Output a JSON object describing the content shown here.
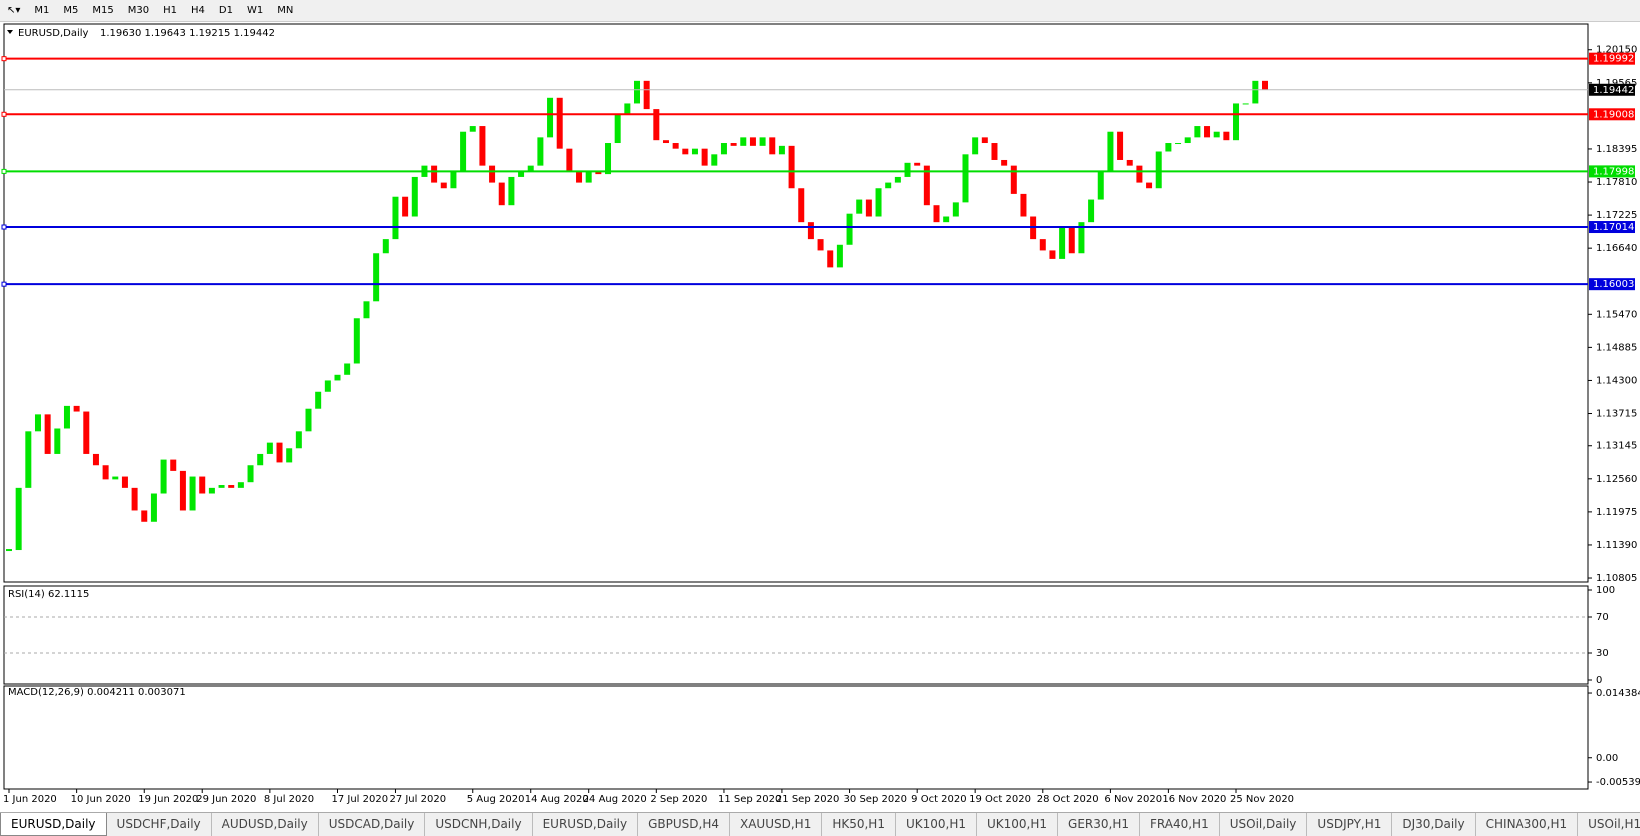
{
  "toolbar": {
    "timeframes": [
      "M1",
      "M5",
      "M15",
      "M30",
      "H1",
      "H4",
      "D1",
      "W1",
      "MN"
    ]
  },
  "chart_data": [
    {
      "type": "candlestick",
      "title": "EURUSD,Daily",
      "subtitle": "1.19630 1.19643 1.19215 1.19442",
      "categories": [
        "1 Jun 2020",
        null,
        null,
        null,
        null,
        null,
        null,
        "10 Jun 2020",
        null,
        null,
        null,
        null,
        null,
        null,
        "19 Jun 2020",
        null,
        null,
        null,
        null,
        null,
        "29 Jun 2020",
        null,
        null,
        null,
        null,
        null,
        null,
        "8 Jul 2020",
        null,
        null,
        null,
        null,
        null,
        null,
        "17 Jul 2020",
        null,
        null,
        null,
        null,
        null,
        "27 Jul 2020",
        null,
        null,
        null,
        null,
        null,
        null,
        null,
        "5 Aug 2020",
        null,
        null,
        null,
        null,
        null,
        "14 Aug 2020",
        null,
        null,
        null,
        null,
        null,
        "24 Aug 2020",
        null,
        null,
        null,
        null,
        null,
        null,
        "2 Sep 2020",
        null,
        null,
        null,
        null,
        null,
        null,
        "11 Sep 2020",
        null,
        null,
        null,
        null,
        null,
        "21 Sep 2020",
        null,
        null,
        null,
        null,
        null,
        null,
        "30 Sep 2020",
        null,
        null,
        null,
        null,
        null,
        null,
        "9 Oct 2020",
        null,
        null,
        null,
        null,
        null,
        "19 Oct 2020",
        null,
        null,
        null,
        null,
        null,
        null,
        "28 Oct 2020",
        null,
        null,
        null,
        null,
        null,
        null,
        "6 Nov 2020",
        null,
        null,
        null,
        null,
        null,
        "16 Nov 2020",
        null,
        null,
        null,
        null,
        null,
        null,
        "25 Nov 2020",
        null,
        null,
        null
      ],
      "closes": [
        1.113,
        1.124,
        1.134,
        1.137,
        1.13,
        1.1345,
        1.1385,
        1.1375,
        1.13,
        1.128,
        1.1255,
        1.126,
        1.124,
        1.12,
        1.118,
        1.123,
        1.129,
        1.127,
        1.12,
        1.126,
        1.123,
        1.124,
        1.1245,
        1.124,
        1.125,
        1.128,
        1.13,
        1.132,
        1.1285,
        1.131,
        1.134,
        1.138,
        1.141,
        1.143,
        1.144,
        1.146,
        1.154,
        1.157,
        1.1655,
        1.168,
        1.1755,
        1.172,
        1.179,
        1.181,
        1.178,
        1.177,
        1.18,
        1.187,
        1.188,
        1.181,
        1.178,
        1.174,
        1.179,
        1.18,
        1.181,
        1.186,
        1.193,
        1.184,
        1.18,
        1.178,
        1.18,
        1.1795,
        1.185,
        1.19,
        1.192,
        1.196,
        1.191,
        1.1855,
        1.185,
        1.184,
        1.183,
        1.184,
        1.181,
        1.183,
        1.185,
        1.1845,
        1.186,
        1.1845,
        1.186,
        1.183,
        1.1845,
        1.177,
        1.171,
        1.168,
        1.166,
        1.163,
        1.167,
        1.1725,
        1.175,
        1.172,
        1.177,
        1.178,
        1.179,
        1.1815,
        1.181,
        1.174,
        1.171,
        1.172,
        1.1745,
        1.183,
        1.186,
        1.185,
        1.182,
        1.181,
        1.176,
        1.172,
        1.168,
        1.166,
        1.1645,
        1.17,
        1.1655,
        1.171,
        1.175,
        1.18,
        1.187,
        1.182,
        1.181,
        1.178,
        1.177,
        1.1835,
        1.185,
        1.185,
        1.186,
        1.188,
        1.186,
        1.187,
        1.1855,
        1.192,
        1.192,
        1.196,
        1.19442
      ],
      "ylim": [
        1.1077,
        1.2057
      ],
      "yticks": [
        {
          "value": 1.2015,
          "label": "1.20150"
        },
        1.19565,
        1.18395,
        {
          "value": 1.1781,
          "label": "1.17810"
        },
        1.17225,
        {
          "value": 1.1664,
          "label": "1.16640"
        },
        {
          "value": 1.1547,
          "label": "1.15470"
        },
        1.14885,
        {
          "value": 1.143,
          "label": "1.14300"
        },
        1.13715,
        1.13145,
        {
          "value": 1.1256,
          "label": "1.12560"
        },
        1.11975,
        {
          "value": 1.1139,
          "label": "1.11390"
        },
        1.10805
      ],
      "levels": [
        {
          "value": 1.19992,
          "color": "#ff0000"
        },
        {
          "value": 1.19008,
          "color": "#ff0000"
        },
        {
          "value": 1.17998,
          "color": "#00dd00"
        },
        {
          "value": 1.17014,
          "color": "#0000dd"
        },
        {
          "value": 1.16003,
          "color": "#0000dd"
        }
      ],
      "current_price": 1.19442,
      "up_color": "#00e600",
      "down_color": "#ff0000"
    },
    {
      "type": "line",
      "title": "RSI(14) 62.1115",
      "ylim": [
        0,
        100
      ],
      "yticks": [
        0,
        30,
        70,
        100
      ]
    },
    {
      "type": "bar",
      "title": "MACD(12,26,9) 0.004211 0.003071",
      "ylim": [
        -0.0065,
        0.0155
      ],
      "yticks": [
        {
          "value": 0.014384,
          "label": "0.014384"
        },
        {
          "value": 0,
          "label": "0.00"
        },
        {
          "value": -0.005396,
          "label": "-0.005396"
        }
      ]
    }
  ],
  "tabs": [
    "EURUSD,Daily",
    "USDCHF,Daily",
    "AUDUSD,Daily",
    "USDCAD,Daily",
    "USDCNH,Daily",
    "EURUSD,Daily",
    "GBPUSD,H4",
    "XAUUSD,H1",
    "HK50,H1",
    "UK100,H1",
    "UK100,H1",
    "GER30,H1",
    "FRA40,H1",
    "USOil,Daily",
    "USDJPY,H1",
    "DJ30,Daily",
    "CHINA300,H1",
    "USOil,H1"
  ]
}
